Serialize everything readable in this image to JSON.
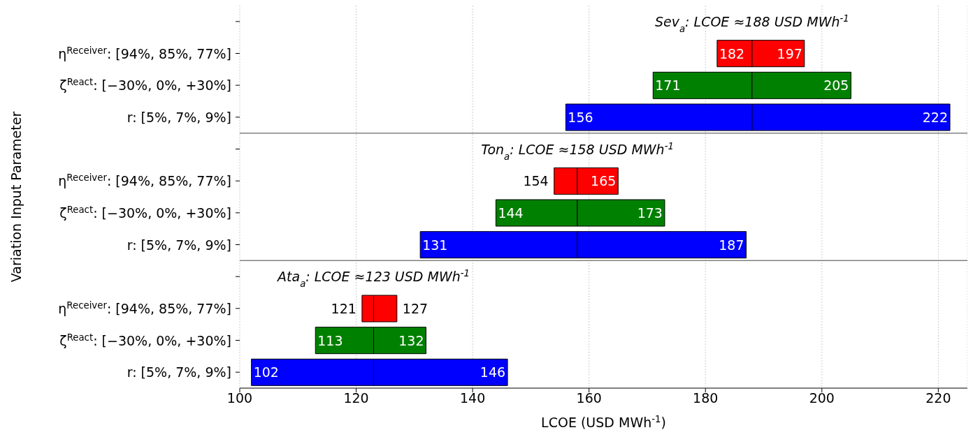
{
  "chart_data": {
    "type": "bar",
    "orientation": "horizontal",
    "xlabel": "LCOE (USD MWh$^{-1}$)",
    "ylabel": "Variation Input Parameter",
    "categories": [
      null,
      "η$^{Receiver}$: [94%, 85%, 77%]",
      "ζ$^{React}$: [−30%, 0%, +30%]",
      "r: [5%, 7%, 9%]",
      null,
      "η$^{Receiver}$: [94%, 85%, 77%]",
      "ζ$^{React}$: [−30%, 0%, +30%]",
      "r: [5%, 7%, 9%]",
      null,
      "η$^{Receiver}$: [94%, 85%, 77%]",
      "ζ$^{React}$: [−30%, 0%, +30%]",
      "r: [5%, 7%, 9%]"
    ],
    "series": [
      {
        "colors": [
          "#ff0000",
          "#ff0000",
          "#008000",
          "#0000ff",
          "#ff0000",
          "#ff0000",
          "#008000",
          "#0000ff",
          "#ff0000",
          "#ff0000",
          "#008000",
          "#0000ff"
        ],
        "base": [
          null,
          188,
          188,
          188,
          null,
          158,
          158,
          158,
          null,
          123,
          123,
          123
        ],
        "values": [
          null,
          -6,
          -17,
          -32,
          null,
          -4,
          -14,
          -27,
          null,
          -2,
          -10,
          -21
        ],
        "value_labels": [
          null,
          "182",
          "171",
          "156",
          null,
          "154",
          "144",
          "131",
          null,
          "121",
          "113",
          "102"
        ]
      },
      {
        "colors": [
          "#ff0000",
          "#ff0000",
          "#008000",
          "#0000ff",
          "#ff0000",
          "#ff0000",
          "#008000",
          "#0000ff",
          "#ff0000",
          "#ff0000",
          "#008000",
          "#0000ff"
        ],
        "base": [
          null,
          188,
          188,
          188,
          null,
          158,
          158,
          158,
          null,
          123,
          123,
          123
        ],
        "values": [
          null,
          9,
          17,
          34,
          null,
          7,
          15,
          29,
          null,
          4,
          9,
          23
        ],
        "value_labels": [
          null,
          "197",
          "205",
          "222",
          null,
          "165",
          "173",
          "187",
          null,
          "127",
          "132",
          "146"
        ]
      }
    ],
    "annotations": [
      "Sev$_{a}$: LCOE ≈188 USD MWh$^{-1}$",
      "Ton$_{a}$: LCOE ≈158 USD MWh$^{-1}$",
      "Ata$_{a}$: LCOE ≈123 USD MWh$^{-1}$"
    ],
    "xlim": [
      100,
      225
    ],
    "xticks": [
      100,
      120,
      140,
      160,
      180,
      200,
      220
    ],
    "grid": "x"
  }
}
